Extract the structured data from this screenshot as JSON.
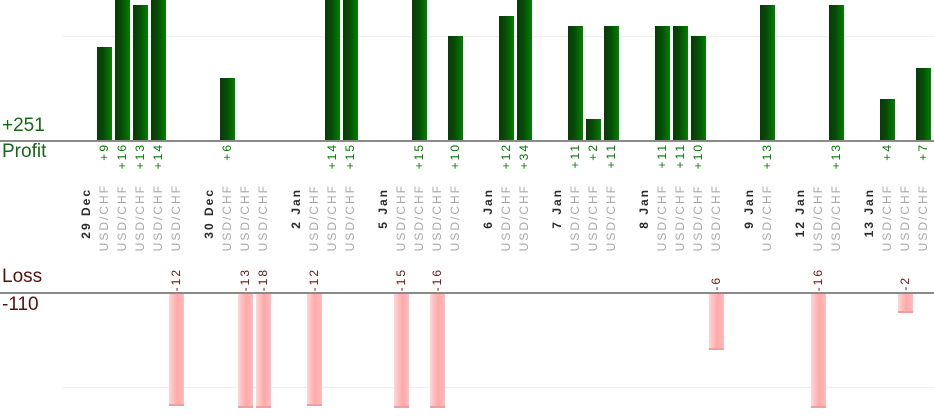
{
  "chart_data": {
    "type": "bar",
    "title": "",
    "instrument_label": "USD/CHF",
    "profit": {
      "axis_label": "Profit",
      "total_label": "+251",
      "gridline_value": 10,
      "value_prefix": "+"
    },
    "loss": {
      "axis_label": "Loss",
      "total_label": "-110",
      "gridline_value": -10
    },
    "groups": [
      {
        "date": "29 Dec",
        "trades": [
          9,
          16,
          13,
          14,
          -12
        ]
      },
      {
        "date": "30 Dec",
        "trades": [
          6,
          -13,
          -18
        ]
      },
      {
        "date": "2 Jan",
        "trades": [
          -12,
          14,
          15
        ]
      },
      {
        "date": "5 Jan",
        "trades": [
          -15,
          15,
          -16,
          10
        ]
      },
      {
        "date": "6 Jan",
        "trades": [
          12,
          34
        ]
      },
      {
        "date": "7 Jan",
        "trades": [
          11,
          2,
          11
        ]
      },
      {
        "date": "8 Jan",
        "trades": [
          11,
          11,
          10,
          -6
        ]
      },
      {
        "date": "9 Jan",
        "trades": [
          13
        ]
      },
      {
        "date": "12 Jan",
        "trades": [
          -16,
          13
        ]
      },
      {
        "date": "13 Jan",
        "trades": [
          4,
          -2,
          7
        ]
      }
    ],
    "layout": {
      "legend": "none",
      "grid": "horizontal-light",
      "bar_orientation": "vertical",
      "profit_bars_clipped_at_top": true,
      "loss_bars_clipped_at_bottom": true
    },
    "colors": {
      "profit_bar_dark": "#0a3a0a",
      "profit_bar_bright": "#018101",
      "loss_bar_light": "#ffd6d6",
      "loss_bar_pink": "#ffa8a8",
      "profit_text": "#077507",
      "profit_title_text": "#156815",
      "loss_text": "#5c0f0f",
      "date_text": "#2b2b2b",
      "symbol_text": "#a9a9a9",
      "axis_line": "#8a8a8a",
      "gridline": "#efefef"
    }
  }
}
